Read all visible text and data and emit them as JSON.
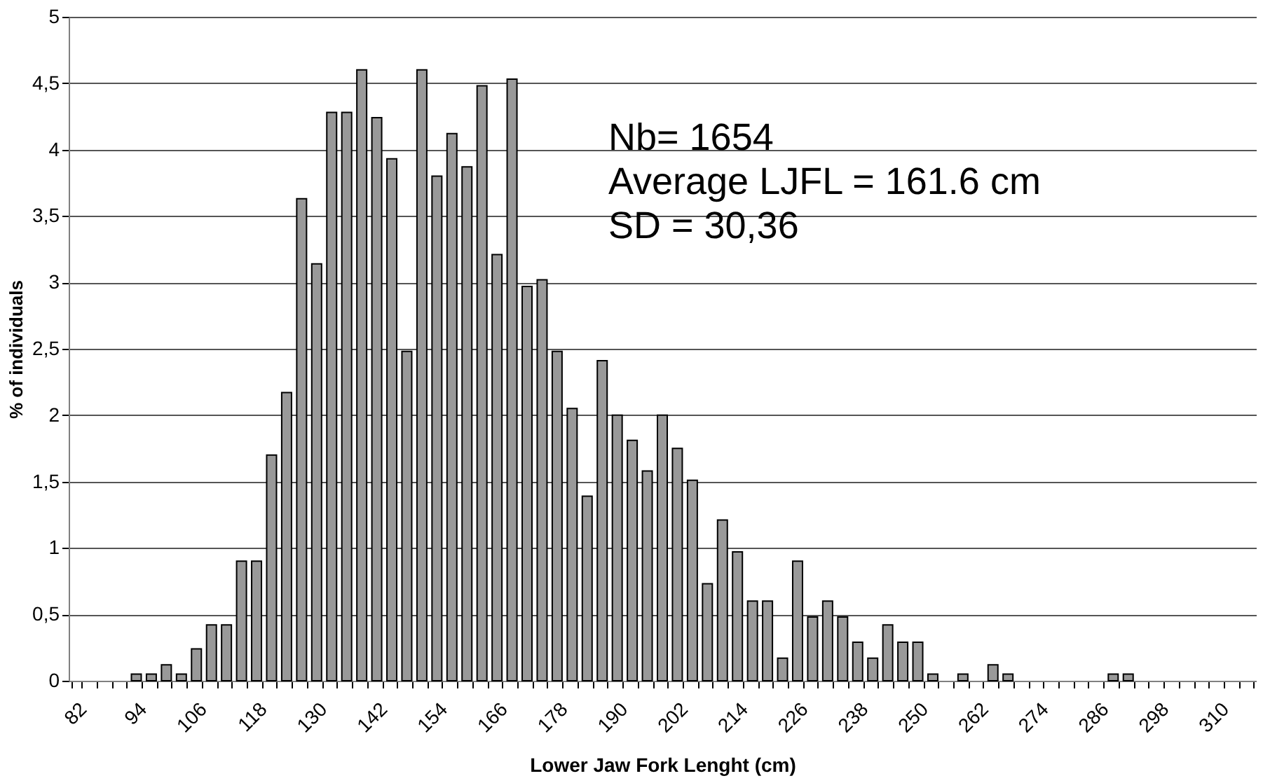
{
  "chart_data": {
    "type": "bar",
    "xlabel": "Lower Jaw Fork Lenght (cm)",
    "ylabel": "% of individuals",
    "categories": [
      "82",
      null,
      null,
      null,
      "94",
      null,
      null,
      null,
      "106",
      null,
      null,
      null,
      "118",
      null,
      null,
      null,
      "130",
      null,
      null,
      null,
      "142",
      null,
      null,
      null,
      "154",
      null,
      null,
      null,
      "166",
      null,
      null,
      null,
      "178",
      null,
      null,
      null,
      "190",
      null,
      null,
      null,
      "202",
      null,
      null,
      null,
      "214",
      null,
      null,
      null,
      "226",
      null,
      null,
      null,
      "238",
      null,
      null,
      null,
      "250",
      null,
      null,
      null,
      "262",
      null,
      null,
      null,
      "274",
      null,
      null,
      null,
      "286",
      null,
      null,
      null,
      "298",
      null,
      null,
      null,
      "310",
      null,
      null
    ],
    "values": [
      0,
      0,
      0,
      0,
      0.05,
      0.05,
      0.12,
      0.05,
      0.24,
      0.42,
      0.42,
      0.9,
      0.9,
      1.7,
      2.17,
      3.63,
      3.14,
      4.28,
      4.28,
      4.6,
      4.24,
      3.93,
      2.48,
      4.6,
      3.8,
      4.12,
      3.87,
      4.48,
      3.21,
      4.53,
      2.97,
      3.02,
      2.48,
      2.05,
      1.39,
      2.41,
      2.0,
      1.81,
      1.58,
      2.0,
      1.75,
      1.51,
      0.73,
      1.21,
      0.97,
      0.6,
      0.6,
      0.17,
      0.9,
      0.48,
      0.6,
      0.48,
      0.29,
      0.17,
      0.42,
      0.29,
      0.29,
      0.05,
      0,
      0.05,
      0,
      0.12,
      0.05,
      0,
      0,
      0,
      0,
      0,
      0,
      0.05,
      0.05,
      0,
      0,
      0,
      0,
      0,
      0,
      0,
      0
    ],
    "color": "#999999",
    "ylim": [
      0,
      5
    ],
    "yticks": [
      0,
      {
        "value": 0.5,
        "label": "0,5"
      },
      1,
      {
        "value": 1.5,
        "label": "1,5"
      },
      2,
      {
        "value": 2.5,
        "label": "2,5"
      },
      3,
      {
        "value": 3.5,
        "label": "3,5"
      },
      4,
      {
        "value": 4.5,
        "label": "4,5"
      },
      5
    ],
    "grid": "y",
    "annotations": [
      "Nb= 1654",
      "Average LJFL = 161.6 cm",
      "SD = 30,36"
    ]
  }
}
